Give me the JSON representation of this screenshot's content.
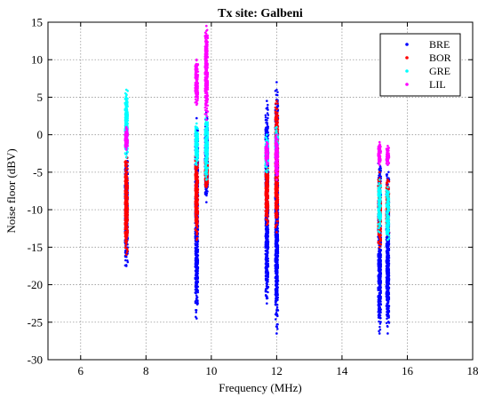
{
  "chart_data": {
    "type": "scatter",
    "title": "Tx site: Galbeni",
    "xlabel": "Frequency (MHz)",
    "ylabel": "Noise floor (dBV)",
    "xlim": [
      5,
      18
    ],
    "ylim": [
      -30,
      15
    ],
    "xticks": [
      6,
      8,
      10,
      12,
      14,
      16,
      18
    ],
    "yticks": [
      15,
      10,
      5,
      0,
      -5,
      -10,
      -15,
      -20,
      -25,
      -30
    ],
    "grid": true,
    "legend_position": "top-right",
    "series": [
      {
        "name": "BRE",
        "color": "#0000ff",
        "points": [
          {
            "x": 7.4,
            "y_min": -17.5,
            "y_max": -2.5
          },
          {
            "x": 9.55,
            "y_min": -24.5,
            "y_max": 2.2
          },
          {
            "x": 9.85,
            "y_min": -9.0,
            "y_max": 3.0
          },
          {
            "x": 11.7,
            "y_min": -22.5,
            "y_max": 4.5
          },
          {
            "x": 12.0,
            "y_min": -26.5,
            "y_max": 7.0
          },
          {
            "x": 15.15,
            "y_min": -26.5,
            "y_max": -3.0
          },
          {
            "x": 15.4,
            "y_min": -26.5,
            "y_max": -4.0
          }
        ]
      },
      {
        "name": "BOR",
        "color": "#ff0000",
        "points": [
          {
            "x": 7.4,
            "y_min": -16.0,
            "y_max": -3.0
          },
          {
            "x": 9.55,
            "y_min": -14.0,
            "y_max": -2.0
          },
          {
            "x": 9.85,
            "y_min": -7.0,
            "y_max": -3.0
          },
          {
            "x": 11.7,
            "y_min": -12.0,
            "y_max": -4.0
          },
          {
            "x": 12.0,
            "y_min": -13.0,
            "y_max": 4.5
          },
          {
            "x": 15.15,
            "y_min": -15.0,
            "y_max": -5.0
          },
          {
            "x": 15.4,
            "y_min": -14.0,
            "y_max": -6.0
          }
        ]
      },
      {
        "name": "GRE",
        "color": "#00ffff",
        "points": [
          {
            "x": 7.4,
            "y_min": -3.0,
            "y_max": 6.0
          },
          {
            "x": 9.55,
            "y_min": -4.0,
            "y_max": 1.5
          },
          {
            "x": 9.85,
            "y_min": -6.0,
            "y_max": 2.5
          },
          {
            "x": 11.7,
            "y_min": -5.0,
            "y_max": 0.0
          },
          {
            "x": 12.0,
            "y_min": -3.0,
            "y_max": 1.0
          },
          {
            "x": 15.15,
            "y_min": -13.0,
            "y_max": -6.0
          },
          {
            "x": 15.4,
            "y_min": -14.0,
            "y_max": -7.0
          }
        ]
      },
      {
        "name": "LIL",
        "color": "#ff00ff",
        "points": [
          {
            "x": 7.4,
            "y_min": -2.0,
            "y_max": 1.0
          },
          {
            "x": 9.55,
            "y_min": 4.0,
            "y_max": 10.0
          },
          {
            "x": 9.85,
            "y_min": 2.0,
            "y_max": 14.5
          },
          {
            "x": 11.7,
            "y_min": -4.0,
            "y_max": -1.0
          },
          {
            "x": 12.0,
            "y_min": -6.0,
            "y_max": 0.0
          },
          {
            "x": 15.15,
            "y_min": -4.0,
            "y_max": -1.0
          },
          {
            "x": 15.4,
            "y_min": -4.0,
            "y_max": -1.5
          }
        ]
      }
    ]
  }
}
